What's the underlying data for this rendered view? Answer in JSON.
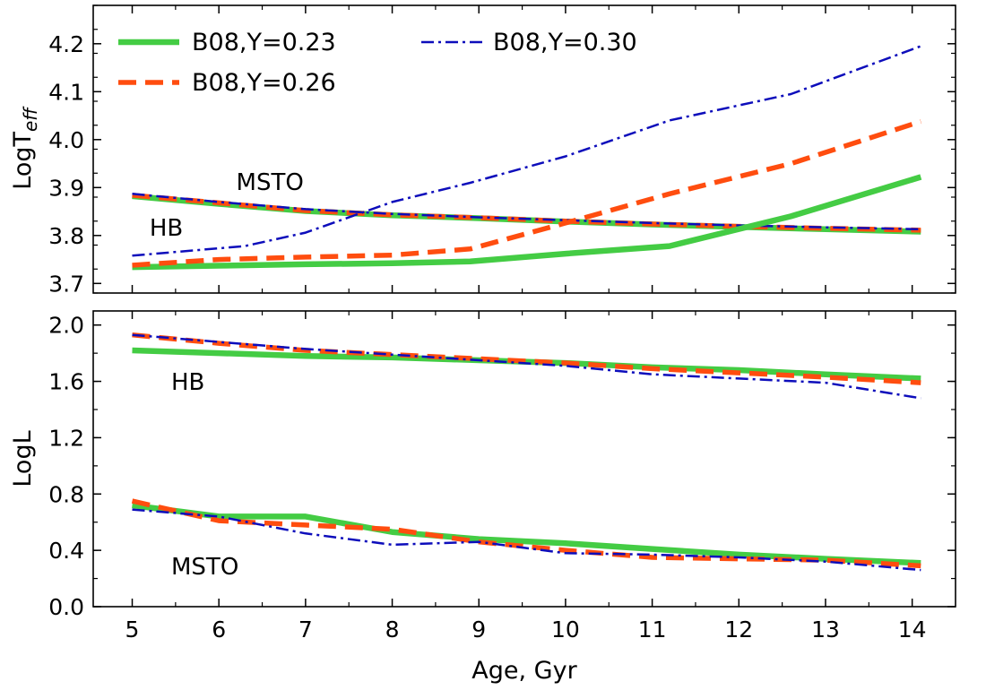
{
  "chart_data": [
    {
      "type": "line",
      "panel": "top",
      "ylabel_main": "LogT",
      "ylabel_sub": "eff",
      "xlim": [
        4.55,
        14.5
      ],
      "ylim": [
        3.68,
        4.28
      ],
      "yticks": [
        3.7,
        3.8,
        3.9,
        4.0,
        4.1,
        4.2
      ],
      "ytick_labels": [
        "3.7",
        "3.8",
        "3.9",
        "4.0",
        "4.1",
        "4.2"
      ],
      "annotations": [
        {
          "text": "MSTO",
          "x": 6.2,
          "y": 3.895
        },
        {
          "text": "HB",
          "x": 5.2,
          "y": 3.8
        }
      ],
      "series": [
        {
          "name": "B08,Y=0.23 MSTO",
          "style": "solid-green",
          "x": [
            5,
            6,
            7,
            8,
            9,
            10,
            11,
            12,
            13,
            14.1
          ],
          "values": [
            3.882,
            3.866,
            3.851,
            3.842,
            3.836,
            3.829,
            3.823,
            3.818,
            3.813,
            3.808
          ]
        },
        {
          "name": "B08,Y=0.26 MSTO",
          "style": "dashed-orange",
          "x": [
            5,
            6,
            7,
            8,
            9,
            10,
            11,
            12,
            13,
            14.1
          ],
          "values": [
            3.884,
            3.868,
            3.852,
            3.843,
            3.837,
            3.83,
            3.824,
            3.819,
            3.815,
            3.811
          ]
        },
        {
          "name": "B08,Y=0.30 MSTO",
          "style": "dashdot-blue",
          "x": [
            5,
            6,
            7,
            8,
            9,
            10,
            11,
            12,
            13,
            14.1
          ],
          "values": [
            3.887,
            3.87,
            3.855,
            3.845,
            3.838,
            3.832,
            3.826,
            3.821,
            3.817,
            3.813
          ]
        },
        {
          "name": "B08,Y=0.23 HB",
          "style": "solid-green",
          "x": [
            5,
            6,
            7,
            8,
            8.9,
            10,
            11.2,
            12.6,
            14.1
          ],
          "values": [
            3.734,
            3.737,
            3.74,
            3.742,
            3.746,
            3.762,
            3.778,
            3.84,
            3.922
          ]
        },
        {
          "name": "B08,Y=0.26 HB",
          "style": "dashed-orange",
          "x": [
            5,
            6,
            7,
            8,
            8.9,
            10,
            11.2,
            12.6,
            14.1
          ],
          "values": [
            3.738,
            3.75,
            3.755,
            3.759,
            3.772,
            3.826,
            3.887,
            3.95,
            4.038
          ]
        },
        {
          "name": "B08,Y=0.30 HB",
          "style": "dashdot-blue",
          "x": [
            5,
            6.3,
            7,
            8,
            8.9,
            10,
            11.2,
            12.6,
            14.1
          ],
          "values": [
            3.758,
            3.778,
            3.806,
            3.87,
            3.91,
            3.965,
            4.04,
            4.095,
            4.195
          ]
        }
      ]
    },
    {
      "type": "line",
      "panel": "bottom",
      "xlabel": "Age, Gyr",
      "ylabel": "LogL",
      "xlim": [
        4.55,
        14.5
      ],
      "ylim": [
        0.0,
        2.1
      ],
      "xticks": [
        5,
        6,
        7,
        8,
        9,
        10,
        11,
        12,
        13,
        14
      ],
      "xtick_labels": [
        "5",
        "6",
        "7",
        "8",
        "9",
        "10",
        "11",
        "12",
        "13",
        "14"
      ],
      "yticks": [
        0.0,
        0.4,
        0.8,
        1.2,
        1.6,
        2.0
      ],
      "ytick_labels": [
        "0.0",
        "0.4",
        "0.8",
        "1.2",
        "1.6",
        "2.0"
      ],
      "annotations": [
        {
          "text": "HB",
          "x": 5.45,
          "y": 1.54
        },
        {
          "text": "MSTO",
          "x": 5.45,
          "y": 0.23
        }
      ],
      "series": [
        {
          "name": "B08,Y=0.23 HB",
          "style": "solid-green",
          "x": [
            5,
            6,
            7,
            8,
            9,
            10,
            11,
            12,
            13,
            14.1
          ],
          "values": [
            1.82,
            1.8,
            1.78,
            1.77,
            1.75,
            1.73,
            1.7,
            1.68,
            1.65,
            1.62
          ]
        },
        {
          "name": "B08,Y=0.26 HB",
          "style": "dashed-orange",
          "x": [
            5,
            6,
            7,
            8,
            9,
            10,
            11,
            12,
            13,
            14.1
          ],
          "values": [
            1.93,
            1.87,
            1.82,
            1.79,
            1.76,
            1.73,
            1.69,
            1.66,
            1.63,
            1.59
          ]
        },
        {
          "name": "B08,Y=0.30 HB",
          "style": "dashdot-blue",
          "x": [
            5,
            6,
            7,
            8,
            9,
            10,
            11,
            12,
            13,
            14.1
          ],
          "values": [
            1.93,
            1.88,
            1.83,
            1.79,
            1.75,
            1.71,
            1.65,
            1.62,
            1.59,
            1.48
          ]
        },
        {
          "name": "B08,Y=0.23 MSTO",
          "style": "solid-green",
          "x": [
            5,
            6,
            7,
            8,
            9,
            10,
            11,
            12,
            13,
            14.1
          ],
          "values": [
            0.72,
            0.64,
            0.64,
            0.53,
            0.48,
            0.45,
            0.41,
            0.37,
            0.34,
            0.31
          ]
        },
        {
          "name": "B08,Y=0.26 MSTO",
          "style": "dashed-orange",
          "x": [
            5,
            6,
            7,
            8,
            9,
            10,
            11,
            12,
            13,
            14.1
          ],
          "values": [
            0.75,
            0.61,
            0.58,
            0.55,
            0.46,
            0.4,
            0.35,
            0.34,
            0.33,
            0.29
          ]
        },
        {
          "name": "B08,Y=0.30 MSTO",
          "style": "dashdot-blue",
          "x": [
            5,
            6,
            7,
            8,
            9,
            10,
            11,
            12,
            13,
            14.1
          ],
          "values": [
            0.69,
            0.64,
            0.52,
            0.44,
            0.46,
            0.38,
            0.37,
            0.35,
            0.32,
            0.26
          ]
        }
      ]
    }
  ],
  "legend": {
    "placement": "top-left",
    "entries": [
      {
        "label": "B08,Y=0.23",
        "style": "solid-green"
      },
      {
        "label": "B08,Y=0.26",
        "style": "dashed-orange"
      },
      {
        "label": "B08,Y=0.30",
        "style": "dashdot-blue"
      }
    ]
  },
  "colors": {
    "solid-green": "#44cc44",
    "dashed-orange": "#ff4d0f",
    "dashdot-blue": "#0d0dbb"
  }
}
